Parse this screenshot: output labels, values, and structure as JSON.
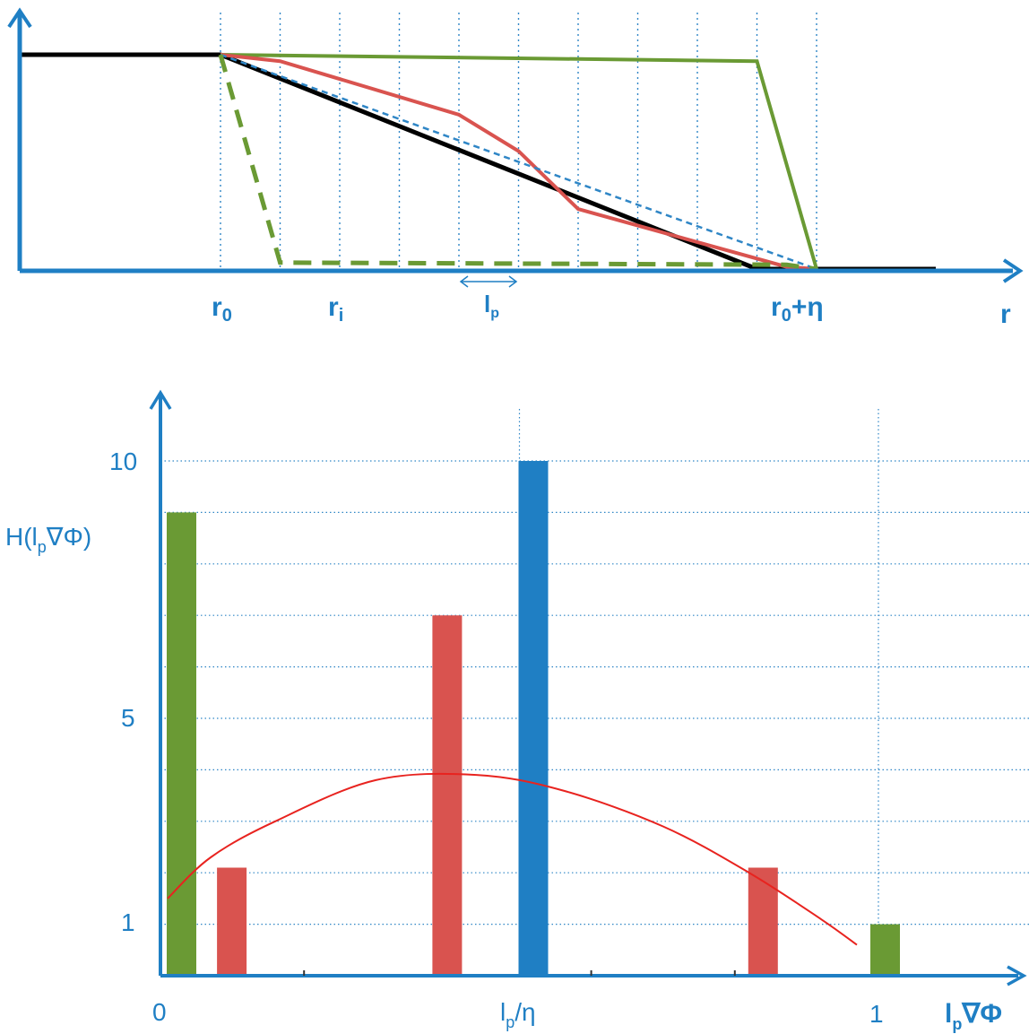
{
  "top": {
    "x_markers": {
      "r0": {
        "main": "r",
        "sub": "0"
      },
      "ri": {
        "main": "r",
        "sub": "i"
      },
      "lp": {
        "main": "l",
        "sub": "p"
      },
      "r0eta": {
        "main": "r",
        "sub": "0",
        "tail": "+η"
      },
      "r": {
        "main": "r"
      }
    }
  },
  "chart_data": [
    {
      "type": "line",
      "xlabel": "r",
      "ylabel": "",
      "series": [
        {
          "style": "solid-black-baseline",
          "color": "#000000",
          "points": [
            [
              0,
              1
            ],
            [
              2,
              1
            ],
            [
              11,
              0
            ],
            [
              14,
              0
            ]
          ]
        },
        {
          "style": "solid-green",
          "color": "#6a9a34",
          "points": [
            [
              2,
              1
            ],
            [
              11,
              0.97
            ],
            [
              12,
              0
            ]
          ]
        },
        {
          "style": "solid-red",
          "color": "#d9534f",
          "points": [
            [
              2,
              1
            ],
            [
              3,
              0.97
            ],
            [
              6,
              0.72
            ],
            [
              7,
              0.55
            ],
            [
              8,
              0.28
            ],
            [
              11.5,
              0.01
            ],
            [
              12,
              0
            ]
          ]
        },
        {
          "style": "dashed-blue",
          "color": "#2f86c6",
          "points": [
            [
              2,
              1
            ],
            [
              12,
              0
            ]
          ]
        },
        {
          "style": "dashed-green",
          "color": "#6a9a34",
          "points": [
            [
              2,
              1
            ],
            [
              3,
              0.03
            ],
            [
              11.5,
              0.02
            ],
            [
              12,
              0
            ]
          ]
        }
      ],
      "annotations": [
        "r0",
        "ri",
        "lp",
        "r0+η",
        "r"
      ]
    },
    {
      "type": "bar",
      "ylabel": {
        "main": "H(l",
        "sub": "p",
        "tail": "∇Φ)"
      },
      "xlabel": {
        "main": "l",
        "sub": "p",
        "tail": "∇Φ"
      },
      "xticks": [
        {
          "x": 0,
          "label": "0"
        },
        {
          "x": 0.5,
          "label": {
            "main": "l",
            "sub": "p",
            "tail": "/η"
          }
        },
        {
          "x": 1,
          "label": "1"
        }
      ],
      "yticks": [
        {
          "y": 1,
          "label": "1"
        },
        {
          "y": 5,
          "label": "5"
        },
        {
          "y": 10,
          "label": "10"
        }
      ],
      "ylim": [
        0,
        11
      ],
      "xlim": [
        0,
        1.1
      ],
      "bars": [
        {
          "x": 0.01,
          "value": 9,
          "color": "#6a9a34"
        },
        {
          "x": 0.08,
          "value": 2.1,
          "color": "#d9534f"
        },
        {
          "x": 0.5,
          "value": 10,
          "color": "#1f7fc4"
        },
        {
          "x": 0.38,
          "value": 7,
          "color": "#d9534f"
        },
        {
          "x": 0.82,
          "value": 2.1,
          "color": "#d9534f"
        },
        {
          "x": 0.99,
          "value": 1,
          "color": "#6a9a34"
        }
      ],
      "curve": {
        "color": "#e8231f",
        "points": [
          [
            0.01,
            1.5
          ],
          [
            0.07,
            2.3
          ],
          [
            0.16,
            3.0
          ],
          [
            0.3,
            3.8
          ],
          [
            0.44,
            3.9
          ],
          [
            0.56,
            3.6
          ],
          [
            0.7,
            2.9
          ],
          [
            0.82,
            2.0
          ],
          [
            0.92,
            1.1
          ],
          [
            0.97,
            0.6
          ]
        ]
      },
      "grid": true
    }
  ]
}
